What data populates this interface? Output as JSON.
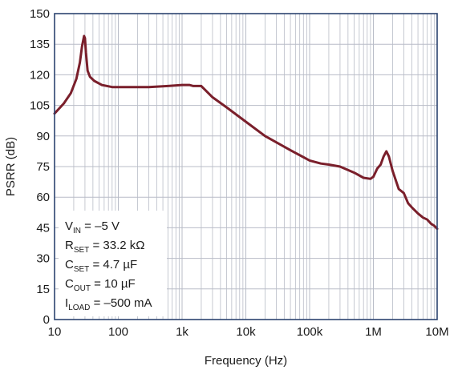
{
  "chart_data": {
    "type": "line",
    "title": "",
    "xlabel": "Frequency (Hz)",
    "ylabel": "PSRR (dB)",
    "xscale": "log",
    "xlim": [
      10,
      10000000
    ],
    "ylim": [
      0,
      150
    ],
    "grid": true,
    "legend": "none",
    "line_color": "#7a1f2b",
    "grid_color": "#b8bcc7",
    "frame_color": "#2c4470",
    "x_ticks": [
      {
        "value": 10,
        "label": "10"
      },
      {
        "value": 100,
        "label": "100"
      },
      {
        "value": 1000,
        "label": "1k"
      },
      {
        "value": 10000,
        "label": "10k"
      },
      {
        "value": 100000,
        "label": "100k"
      },
      {
        "value": 1000000,
        "label": "1M"
      },
      {
        "value": 10000000,
        "label": "10M"
      }
    ],
    "y_ticks": [
      {
        "value": 0,
        "label": "0"
      },
      {
        "value": 15,
        "label": "15"
      },
      {
        "value": 30,
        "label": "30"
      },
      {
        "value": 45,
        "label": "45"
      },
      {
        "value": 60,
        "label": "60"
      },
      {
        "value": 75,
        "label": "75"
      },
      {
        "value": 90,
        "label": "90"
      },
      {
        "value": 105,
        "label": "105"
      },
      {
        "value": 120,
        "label": "120"
      },
      {
        "value": 135,
        "label": "135"
      },
      {
        "value": 150,
        "label": "150"
      }
    ],
    "annotation": [
      {
        "main": "V",
        "sub": "IN",
        "rest": " = –5 V"
      },
      {
        "main": "R",
        "sub": "SET",
        "rest": " = 33.2 kΩ"
      },
      {
        "main": "C",
        "sub": "SET",
        "rest": " = 4.7 µF"
      },
      {
        "main": "C",
        "sub": "OUT",
        "rest": " = 10 µF"
      },
      {
        "main": "I",
        "sub": "LOAD",
        "rest": " = –500 mA"
      }
    ],
    "series": [
      {
        "x": [
          10,
          14,
          18,
          22,
          25,
          27,
          29,
          30,
          31,
          33,
          36,
          42,
          55,
          80,
          120,
          300,
          600,
          1000,
          1300,
          1500,
          2000,
          3000,
          5000,
          10000,
          20000,
          50000,
          100000,
          150000,
          200000,
          300000,
          500000,
          700000,
          900000,
          1000000,
          1150000,
          1300000,
          1450000,
          1600000,
          1750000,
          2000000,
          2500000,
          3000000,
          3500000,
          4000000,
          5000000,
          6000000,
          7000000,
          8000000,
          9000000,
          10000000
        ],
        "y": [
          101,
          106,
          111,
          118,
          126,
          134,
          139,
          138,
          131,
          122,
          119,
          117,
          115,
          114,
          114,
          114,
          114.5,
          115,
          115,
          114.5,
          114.5,
          109,
          104,
          97,
          90,
          83,
          78,
          76.5,
          76,
          75,
          72,
          69.5,
          69,
          70,
          74,
          76,
          80,
          82.5,
          80,
          73,
          64,
          62,
          57,
          55,
          52,
          50,
          49,
          47,
          46,
          44.5
        ]
      }
    ]
  }
}
